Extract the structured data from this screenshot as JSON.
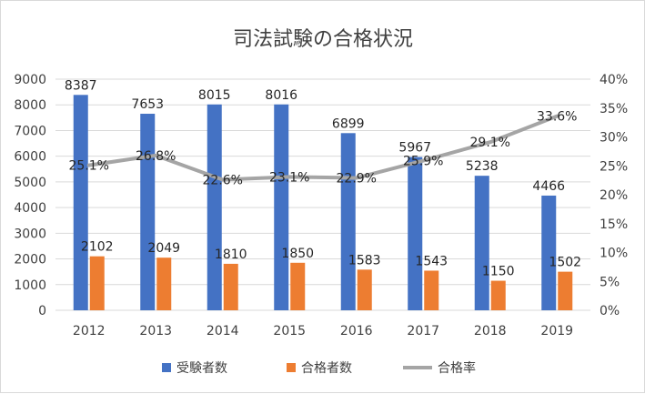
{
  "chart_data": {
    "type": "bar",
    "title": "司法試験の合格状況",
    "categories": [
      "2012",
      "2013",
      "2014",
      "2015",
      "2016",
      "2017",
      "2018",
      "2019"
    ],
    "series": [
      {
        "name": "受験者数",
        "type": "bar",
        "axis": "left",
        "color": "#4472c4",
        "values": [
          8387,
          7653,
          8015,
          8016,
          6899,
          5967,
          5238,
          4466
        ],
        "labels": [
          "8387",
          "7653",
          "8015",
          "8016",
          "6899",
          "5967",
          "5238",
          "4466"
        ]
      },
      {
        "name": "合格者数",
        "type": "bar",
        "axis": "left",
        "color": "#ed7d31",
        "values": [
          2102,
          2049,
          1810,
          1850,
          1583,
          1543,
          1150,
          1502
        ],
        "labels": [
          "2102",
          "2049",
          "1810",
          "1850",
          "1583",
          "1543",
          "1150",
          "1502"
        ]
      },
      {
        "name": "合格率",
        "type": "line",
        "axis": "right",
        "color": "#a5a5a5",
        "values": [
          25.1,
          26.8,
          22.6,
          23.1,
          22.9,
          25.9,
          29.1,
          33.6
        ],
        "labels": [
          "25.1%",
          "26.8%",
          "22.6%",
          "23.1%",
          "22.9%",
          "25.9%",
          "29.1%",
          "33.6%"
        ]
      }
    ],
    "ylim": [
      0,
      9000
    ],
    "y_ticks": [
      "0",
      "1000",
      "2000",
      "3000",
      "4000",
      "5000",
      "6000",
      "7000",
      "8000",
      "9000"
    ],
    "y2lim": [
      0,
      40
    ],
    "y2_ticks": [
      "0%",
      "5%",
      "10%",
      "15%",
      "20%",
      "25%",
      "30%",
      "35%",
      "40%"
    ],
    "grid": true,
    "legend": "bottom"
  }
}
